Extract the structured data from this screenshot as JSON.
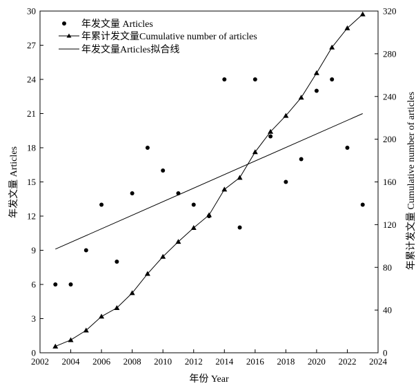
{
  "chart_data": {
    "type": "scatter",
    "x_axis": {
      "label": "年份 Year",
      "range": [
        2002,
        2024
      ],
      "ticks": [
        2002,
        2004,
        2006,
        2008,
        2010,
        2012,
        2014,
        2016,
        2018,
        2020,
        2022,
        2024
      ]
    },
    "y_left": {
      "label": "年发文量 Articles",
      "range": [
        0,
        30
      ],
      "ticks": [
        0,
        3,
        6,
        9,
        12,
        15,
        18,
        21,
        24,
        27,
        30
      ]
    },
    "y_right": {
      "label": "年累计发文量 Cumulative number of articles",
      "range": [
        0,
        320
      ],
      "ticks": [
        0,
        40,
        80,
        120,
        160,
        200,
        240,
        280,
        320
      ]
    },
    "grid": false,
    "legend_position": "top-left",
    "series": [
      {
        "name": "年发文量 Articles",
        "kind": "scatter",
        "axis": "left",
        "marker": "circle",
        "x": [
          2003,
          2004,
          2005,
          2006,
          2007,
          2008,
          2009,
          2010,
          2011,
          2012,
          2013,
          2014,
          2015,
          2016,
          2017,
          2018,
          2019,
          2020,
          2021,
          2022,
          2023
        ],
        "y": [
          6,
          6,
          9,
          13,
          8,
          14,
          18,
          16,
          14,
          13,
          12,
          24,
          11,
          24,
          19,
          15,
          17,
          23,
          24,
          18,
          13
        ]
      },
      {
        "name": "年累计发文量Cumulative number of articles",
        "kind": "line",
        "axis": "right",
        "marker": "triangle",
        "x": [
          2003,
          2004,
          2005,
          2006,
          2007,
          2008,
          2009,
          2010,
          2011,
          2012,
          2013,
          2014,
          2015,
          2016,
          2017,
          2018,
          2019,
          2020,
          2021,
          2022,
          2023
        ],
        "y": [
          6,
          12,
          21,
          34,
          42,
          56,
          74,
          90,
          104,
          117,
          129,
          153,
          164,
          188,
          207,
          222,
          239,
          262,
          286,
          304,
          317
        ]
      },
      {
        "name": "年发文量Articles拟合线",
        "kind": "line",
        "axis": "left",
        "marker": "none",
        "x": [
          2003,
          2023
        ],
        "y": [
          9.1,
          21.0
        ]
      }
    ]
  }
}
